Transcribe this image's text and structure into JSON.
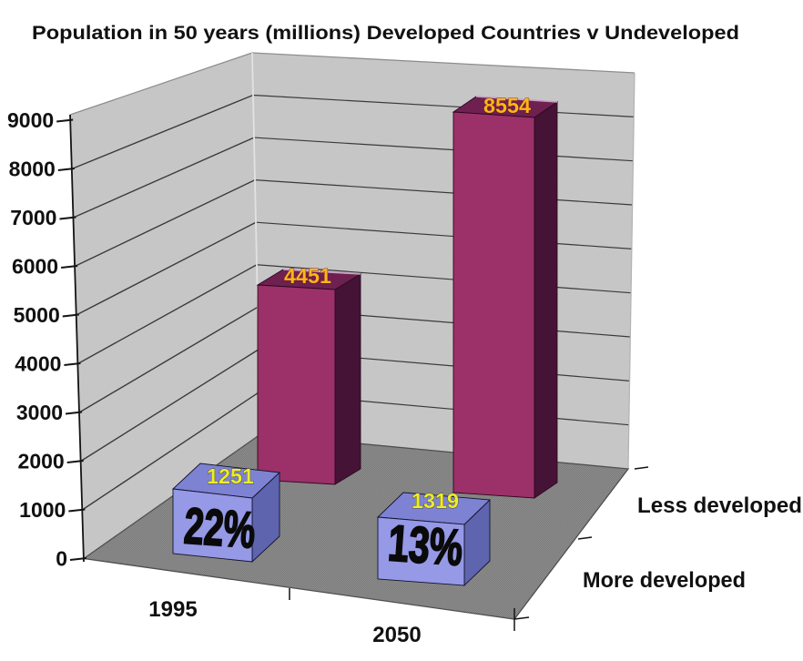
{
  "title": "Population in 50 years (millions) Developed Countries v Undeveloped",
  "chart_data": {
    "type": "bar",
    "projection": "3d-perspective",
    "title": "Population in 50 years (millions) Developed Countries v Undeveloped",
    "categories": [
      "1995",
      "2050"
    ],
    "series": [
      {
        "name": "Less developed",
        "row": "back",
        "values": [
          4451,
          8554
        ],
        "color_front": "#9B3168",
        "color_side": "#451335",
        "color_top": "#6E2150",
        "edge_highlight": "#C79FC2",
        "outline": "#30081F",
        "value_label_color": "#FFB516",
        "value_label_outline": "#5A1030"
      },
      {
        "name": "More developed",
        "row": "front",
        "values": [
          1251,
          1319
        ],
        "percent_labels": [
          "22%",
          "13%"
        ],
        "color_front": "#9599E6",
        "color_side": "#5E64AE",
        "color_top": "#7E82D2",
        "outline": "#14142E",
        "value_label_color": "#ECEC2F",
        "value_label_outline": "#3B3C0E"
      }
    ],
    "xlabel": "",
    "ylabel": "",
    "ylim": [
      0,
      9000
    ],
    "ytick_interval": 1000,
    "yticks": [
      "0",
      "1000",
      "2000",
      "3000",
      "4000",
      "5000",
      "6000",
      "7000",
      "8000",
      "9000"
    ],
    "grid": true,
    "legend_position": "right-of-floor"
  },
  "colors": {
    "background": "#FFFFFF",
    "wall": "#CBCBCB",
    "wall_dither": "#C1C1C1",
    "floor": "#8E8E8E",
    "floor_dither": "#7A7A7A",
    "gridline": "#3A3A3A",
    "axis": "#141414",
    "text": "#111111",
    "percent_text": "#0A0A0A",
    "corner_highlight": "#E2E2E2",
    "wall_edge": "#8E8E8E",
    "floor_edge": "#4F4F4F"
  }
}
